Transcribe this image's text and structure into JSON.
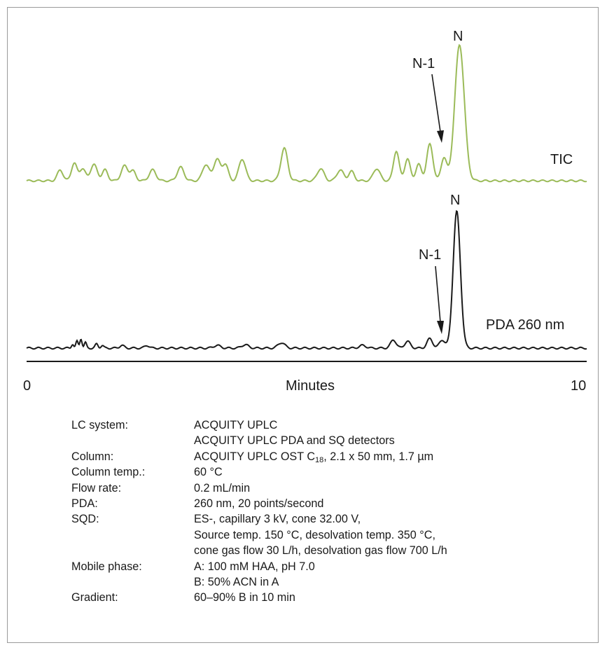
{
  "chart_data": {
    "type": "line",
    "xlabel": "Minutes",
    "xlim": [
      0,
      10
    ],
    "xticks": [
      "0",
      "10"
    ],
    "grid": false,
    "series": [
      {
        "name": "TIC",
        "color": "#9bbb59",
        "baseline": 0.02,
        "peaks": [
          [
            0.6,
            0.08,
            0.05
          ],
          [
            0.85,
            0.13,
            0.05
          ],
          [
            1.0,
            0.09,
            0.05
          ],
          [
            1.2,
            0.12,
            0.06
          ],
          [
            1.4,
            0.08,
            0.05
          ],
          [
            1.75,
            0.11,
            0.06
          ],
          [
            1.9,
            0.07,
            0.05
          ],
          [
            2.25,
            0.08,
            0.06
          ],
          [
            2.75,
            0.1,
            0.06
          ],
          [
            3.2,
            0.12,
            0.06
          ],
          [
            3.4,
            0.16,
            0.06
          ],
          [
            3.55,
            0.12,
            0.05
          ],
          [
            3.85,
            0.16,
            0.06
          ],
          [
            4.6,
            0.24,
            0.06
          ],
          [
            5.25,
            0.09,
            0.06
          ],
          [
            5.6,
            0.08,
            0.06
          ],
          [
            5.8,
            0.07,
            0.05
          ],
          [
            6.25,
            0.09,
            0.06
          ],
          [
            6.6,
            0.22,
            0.05
          ],
          [
            6.8,
            0.16,
            0.05
          ],
          [
            7.0,
            0.12,
            0.05
          ],
          [
            7.2,
            0.27,
            0.055
          ],
          [
            7.45,
            0.17,
            0.05
          ],
          [
            7.73,
            1.0,
            0.085
          ]
        ]
      },
      {
        "name": "PDA 260 nm",
        "color": "#1a1a1a",
        "baseline": 0.0,
        "peaks": [
          [
            0.82,
            0.03,
            0.02
          ],
          [
            0.9,
            0.05,
            0.02
          ],
          [
            0.97,
            0.07,
            0.02
          ],
          [
            1.05,
            0.04,
            0.02
          ],
          [
            1.25,
            0.03,
            0.025
          ],
          [
            1.35,
            0.02,
            0.025
          ],
          [
            1.7,
            0.02,
            0.04
          ],
          [
            2.15,
            0.02,
            0.04
          ],
          [
            3.4,
            0.02,
            0.06
          ],
          [
            3.9,
            0.025,
            0.06
          ],
          [
            4.55,
            0.04,
            0.06
          ],
          [
            6.0,
            0.02,
            0.06
          ],
          [
            6.55,
            0.06,
            0.05
          ],
          [
            6.8,
            0.05,
            0.05
          ],
          [
            7.2,
            0.07,
            0.05
          ],
          [
            7.42,
            0.06,
            0.05
          ],
          [
            7.68,
            1.0,
            0.065
          ]
        ]
      }
    ],
    "annotations": [
      "N",
      "N-1",
      "N",
      "N-1"
    ]
  },
  "labels": {
    "tic_series": "TIC",
    "pda_series": "PDA 260 nm",
    "tic_main_peak": "N",
    "tic_minus_peak": "N-1",
    "pda_main_peak": "N",
    "pda_minus_peak": "N-1",
    "xaxis_min": "0",
    "xaxis_max": "10",
    "xaxis_title": "Minutes"
  },
  "conditions": {
    "lc_key": "LC system:",
    "lc_val1": "ACQUITY UPLC",
    "lc_val2": "ACQUITY UPLC PDA and SQ detectors",
    "column_key": "Column:",
    "column_val_pre": "ACQUITY UPLC OST C",
    "column_val_sub": "18",
    "column_val_post": ", 2.1 x 50 mm, 1.7 µm",
    "temp_key": "Column temp.:",
    "temp_val": "60 °C",
    "flow_key": "Flow rate:",
    "flow_val": "0.2 mL/min",
    "pda_key": "PDA:",
    "pda_val": "260 nm, 20 points/second",
    "sqd_key": "SQD:",
    "sqd_val1": "ES-, capillary 3 kV, cone 32.00 V,",
    "sqd_val2": "Source temp. 150 °C, desolvation temp. 350 °C,",
    "sqd_val3": "cone gas flow 30 L/h, desolvation gas flow 700 L/h",
    "mobile_key": "Mobile phase:",
    "mobile_val1": "A: 100 mM HAA, pH 7.0",
    "mobile_val2": "B: 50% ACN in A",
    "gradient_key": "Gradient:",
    "gradient_val": "60–90% B in 10 min"
  }
}
